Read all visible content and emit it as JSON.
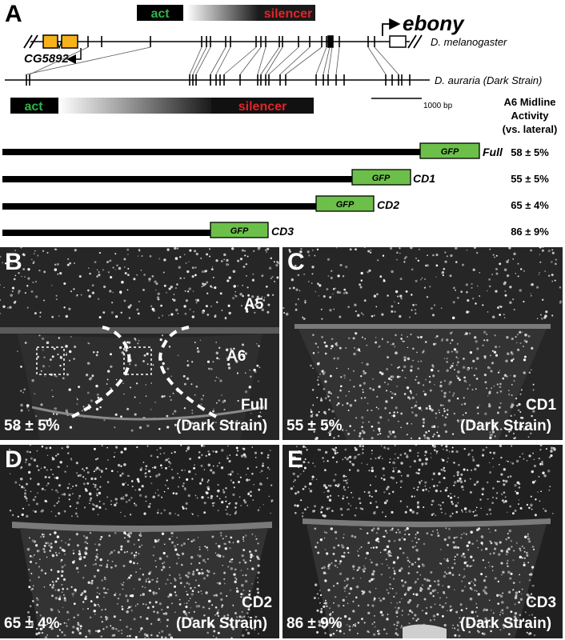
{
  "panel_a": {
    "letter": "A",
    "gene_name": "ebony",
    "neighbor_gene": "CG5892",
    "species_top": "D. melanogaster",
    "species_bottom": "D. auraria (Dark Strain)",
    "act_label": "act",
    "silencer_label": "silencer",
    "scale_label": "1000 bp",
    "gfp_label": "GFP",
    "table_header": [
      "A6 Midline",
      "Activity",
      "(vs. lateral)"
    ],
    "constructs": [
      {
        "name": "Full",
        "activity": "58 ± 5%"
      },
      {
        "name": "CD1",
        "activity": "55 ± 5%"
      },
      {
        "name": "CD2",
        "activity": "65 ± 4%"
      },
      {
        "name": "CD3",
        "activity": "86 ± 9%"
      }
    ],
    "colors": {
      "act": "#2fb34a",
      "silencer": "#e2232a",
      "gfp": "#6cc04a",
      "exon": "#f5b21b"
    }
  },
  "panels": [
    {
      "letter": "B",
      "construct": "Full",
      "strain": "(Dark Strain)",
      "value": "58 ± 5%",
      "label_a5": "A5",
      "label_a6": "A6"
    },
    {
      "letter": "C",
      "construct": "CD1",
      "strain": "(Dark Strain)",
      "value": "55 ± 5%"
    },
    {
      "letter": "D",
      "construct": "CD2",
      "strain": "(Dark Strain)",
      "value": "65 ± 4%"
    },
    {
      "letter": "E",
      "construct": "CD3",
      "strain": "(Dark Strain)",
      "value": "86 ± 9%"
    }
  ]
}
